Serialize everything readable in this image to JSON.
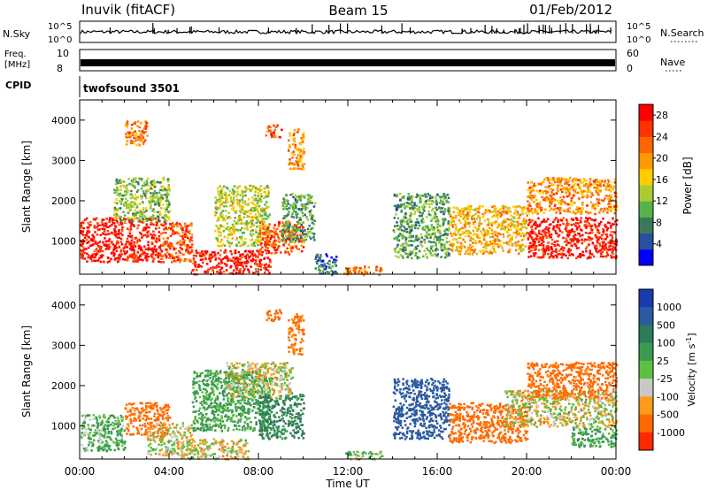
{
  "header": {
    "station": "Inuvik (fitACF)",
    "beam": "Beam 15",
    "date": "01/Feb/2012"
  },
  "status_panels": {
    "nsky": {
      "label": "N.Sky",
      "ticks": [
        "10^5",
        "10^0"
      ]
    },
    "nsearch": {
      "label": "N.Search",
      "ticks": [
        "10^5",
        "10^0"
      ]
    },
    "freq": {
      "label": "Freq.",
      "unit": "[MHz]",
      "ticks": [
        "10",
        "8"
      ]
    },
    "nave": {
      "label": "Nave",
      "ticks": [
        "60",
        "0"
      ]
    },
    "cpid": {
      "label": "CPID",
      "value": "twofsound 3501"
    }
  },
  "colors": {
    "power_scale": [
      "#0000ff",
      "#284fa0",
      "#3a7a5a",
      "#56b24a",
      "#aacc33",
      "#ffcc00",
      "#ff9900",
      "#ff6600",
      "#ff3300",
      "#ff0000"
    ],
    "velocity_scale": [
      "#1a3ab0",
      "#2a5aa0",
      "#2e7a5a",
      "#3a9a50",
      "#5cc040",
      "#c8c8c8",
      "#c8c8c8",
      "#ff9a1a",
      "#ff6a00",
      "#ff2a00",
      "#ff0000"
    ],
    "ground_scatter": "#c0c0b8"
  },
  "chart_data": [
    {
      "type": "heatmap",
      "name": "Power",
      "xlabel": "Time UT",
      "ylabel": "Slant Range [km]",
      "x_ticks": [
        "00:00",
        "04:00",
        "08:00",
        "12:00",
        "16:00",
        "20:00",
        "00:00"
      ],
      "x_range_hours": [
        0,
        24
      ],
      "y_ticks": [
        1000,
        2000,
        3000,
        4000
      ],
      "y_range": [
        180,
        4500
      ],
      "colorbar": {
        "label": "Power [dB]",
        "ticks": [
          4,
          8,
          12,
          16,
          20,
          24,
          28
        ],
        "range": [
          0,
          30
        ]
      },
      "regions": [
        {
          "t": [
            0.0,
            3.6
          ],
          "r": [
            500,
            1600
          ],
          "v": 28
        },
        {
          "t": [
            3.6,
            5.0
          ],
          "r": [
            500,
            1500
          ],
          "v": 24
        },
        {
          "t": [
            1.5,
            4.0
          ],
          "r": [
            1500,
            2600
          ],
          "v": 12
        },
        {
          "t": [
            5.0,
            8.5
          ],
          "r": [
            200,
            800
          ],
          "v": 28
        },
        {
          "t": [
            6.0,
            8.5
          ],
          "r": [
            900,
            2400
          ],
          "v": 14
        },
        {
          "t": [
            8.0,
            10.0
          ],
          "r": [
            700,
            1500
          ],
          "v": 24
        },
        {
          "t": [
            9.0,
            10.5
          ],
          "r": [
            1000,
            2200
          ],
          "v": 10
        },
        {
          "t": [
            2.0,
            3.0
          ],
          "r": [
            3400,
            4000
          ],
          "v": 22
        },
        {
          "t": [
            8.3,
            9.0
          ],
          "r": [
            3600,
            3900
          ],
          "v": 24
        },
        {
          "t": [
            9.3,
            10.0
          ],
          "r": [
            2800,
            3800
          ],
          "v": 20
        },
        {
          "t": [
            10.5,
            11.5
          ],
          "r": [
            180,
            700
          ],
          "v": 6
        },
        {
          "t": [
            11.8,
            13.5
          ],
          "r": [
            180,
            400
          ],
          "v": 22
        },
        {
          "t": [
            14.0,
            16.5
          ],
          "r": [
            600,
            2200
          ],
          "v": 10
        },
        {
          "t": [
            16.5,
            20.0
          ],
          "r": [
            700,
            1900
          ],
          "v": 18
        },
        {
          "t": [
            20.0,
            24.0
          ],
          "r": [
            600,
            1600
          ],
          "v": 28
        },
        {
          "t": [
            20.0,
            24.0
          ],
          "r": [
            1700,
            2600
          ],
          "v": 20
        }
      ]
    },
    {
      "type": "heatmap",
      "name": "Velocity",
      "xlabel": "Time UT",
      "ylabel": "Slant Range [km]",
      "x_ticks": [
        "00:00",
        "04:00",
        "08:00",
        "12:00",
        "16:00",
        "20:00",
        "00:00"
      ],
      "x_range_hours": [
        0,
        24
      ],
      "y_ticks": [
        1000,
        2000,
        3000,
        4000
      ],
      "y_range": [
        180,
        4500
      ],
      "colorbar": {
        "label": "Velocity [m s",
        "label_sup": "-1",
        "label_end": "]",
        "ticks": [
          "1000",
          "500",
          "100",
          "25",
          "-25",
          "-100",
          "-500",
          "-1000"
        ]
      },
      "regions": [
        {
          "t": [
            0.0,
            2.0
          ],
          "r": [
            400,
            1300
          ],
          "v": 100
        },
        {
          "t": [
            2.0,
            4.0
          ],
          "r": [
            800,
            1600
          ],
          "v": -200
        },
        {
          "t": [
            3.0,
            5.0
          ],
          "r": [
            300,
            1100
          ],
          "v": 0
        },
        {
          "t": [
            4.5,
            7.5
          ],
          "r": [
            200,
            700
          ],
          "v": 0
        },
        {
          "t": [
            5.0,
            8.5
          ],
          "r": [
            900,
            2400
          ],
          "v": 150
        },
        {
          "t": [
            6.5,
            9.5
          ],
          "r": [
            1700,
            2600
          ],
          "v": 0
        },
        {
          "t": [
            8.0,
            10.0
          ],
          "r": [
            700,
            1800
          ],
          "v": 300
        },
        {
          "t": [
            8.3,
            9.0
          ],
          "r": [
            3600,
            3900
          ],
          "v": -300
        },
        {
          "t": [
            9.3,
            10.0
          ],
          "r": [
            2800,
            3800
          ],
          "v": -150
        },
        {
          "t": [
            11.8,
            13.5
          ],
          "r": [
            180,
            400
          ],
          "v": 60
        },
        {
          "t": [
            14.0,
            16.5
          ],
          "r": [
            700,
            2200
          ],
          "v": 700
        },
        {
          "t": [
            16.5,
            20.0
          ],
          "r": [
            600,
            1600
          ],
          "v": -300
        },
        {
          "t": [
            19.0,
            24.0
          ],
          "r": [
            1000,
            1900
          ],
          "v": 0
        },
        {
          "t": [
            20.0,
            24.0
          ],
          "r": [
            1700,
            2600
          ],
          "v": -200
        },
        {
          "t": [
            22.0,
            24.0
          ],
          "r": [
            500,
            1000
          ],
          "v": 150
        }
      ]
    }
  ]
}
